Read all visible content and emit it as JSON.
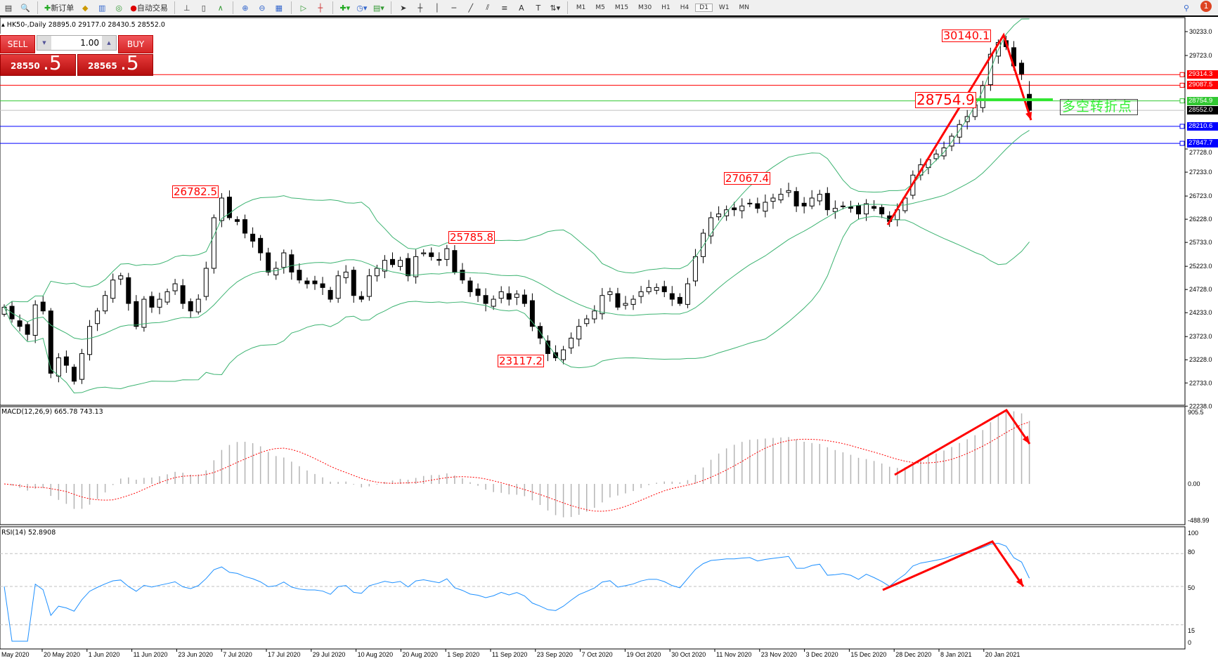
{
  "toolbar": {
    "new_order": "新订单",
    "auto_trading": "自动交易",
    "timeframes": [
      "M1",
      "M5",
      "M15",
      "M30",
      "H1",
      "H4",
      "D1",
      "W1",
      "MN"
    ],
    "notifications": "1"
  },
  "chart": {
    "title": "HK50-,Daily  28895.0 29177.0 28430.5 28552.0",
    "symbol": "HK50-",
    "period": "Daily"
  },
  "trade_panel": {
    "sell": "SELL",
    "buy": "BUY",
    "volume": "1.00",
    "sell_big": "28550",
    "sell_small": ".5",
    "buy_big": "28565",
    "buy_small": ".5"
  },
  "price_axis": [
    "30233.0",
    "29723.0",
    "27728.0",
    "27233.0",
    "26723.0",
    "26228.0",
    "25733.0",
    "25223.0",
    "24728.0",
    "24233.0",
    "23723.0",
    "23228.0",
    "22733.0",
    "22238.0"
  ],
  "levels": [
    {
      "price": "29314.3",
      "color": "#ff0000"
    },
    {
      "price": "29087.5",
      "color": "#ff0000"
    },
    {
      "price": "28754.9",
      "color": "#32c832"
    },
    {
      "price": "28552.0",
      "color": "#000000"
    },
    {
      "price": "28210.6",
      "color": "#0000ff"
    },
    {
      "price": "27847.7",
      "color": "#0000ff"
    }
  ],
  "price_labels": {
    "p1": "26782.5",
    "p2": "25785.8",
    "p3": "23117.2",
    "p4": "27067.4",
    "p5": "30140.1",
    "p6": "28754.9"
  },
  "annotation": "多空转折点",
  "macd": {
    "label": "MACD(12,26,9) 665.78 743.13",
    "axis": [
      "905.5",
      "0.00",
      "-488.99"
    ]
  },
  "rsi": {
    "label": "RSI(14) 52.8908",
    "axis": [
      "100",
      "80",
      "50",
      "15",
      "0"
    ]
  },
  "dates": [
    "May 2020",
    "20 May 2020",
    "1 Jun 2020",
    "11 Jun 2020",
    "23 Jun 2020",
    "7 Jul 2020",
    "17 Jul 2020",
    "29 Jul 2020",
    "10 Aug 2020",
    "20 Aug 2020",
    "1 Sep 2020",
    "11 Sep 2020",
    "23 Sep 2020",
    "7 Oct 2020",
    "19 Oct 2020",
    "30 Oct 2020",
    "11 Nov 2020",
    "23 Nov 2020",
    "3 Dec 2020",
    "15 Dec 2020",
    "28 Dec 2020",
    "8 Jan 2021",
    "20 Jan 2021"
  ],
  "colors": {
    "bands": "#3cb371",
    "signal": "#ff0000",
    "histogram": "#b4b4b4",
    "rsi": "#1e90ff",
    "arrows": "#ff0000"
  },
  "chart_data": {
    "type": "candlestick",
    "closes": [
      24350,
      24100,
      23940,
      23770,
      24400,
      24270,
      22940,
      23270,
      23110,
      22770,
      23360,
      23940,
      24270,
      24600,
      24930,
      25020,
      24430,
      23940,
      24520,
      24350,
      24520,
      24680,
      24850,
      24430,
      24270,
      24520,
      25180,
      26260,
      26680,
      26260,
      26180,
      25930,
      25760,
      25510,
      25100,
      25180,
      25510,
      25100,
      24930,
      24850,
      24850,
      24770,
      24520,
      25020,
      25100,
      24600,
      24520,
      25020,
      25180,
      25350,
      25260,
      25350,
      25020,
      25430,
      25510,
      25430,
      25350,
      25600,
      25100,
      24930,
      24680,
      24600,
      24430,
      24520,
      24680,
      24520,
      24630,
      24430,
      23940,
      23690,
      23360,
      23270,
      23440,
      23690,
      23940,
      24100,
      24270,
      24600,
      24680,
      24350,
      24430,
      24520,
      24680,
      24770,
      24770,
      24680,
      24520,
      24430,
      24850,
      25430,
      25930,
      26260,
      26340,
      26430,
      26430,
      26510,
      26560,
      26460,
      26590,
      26680,
      26760,
      26840,
      26510,
      26510,
      26680,
      26760,
      26430,
      26460,
      26510,
      26460,
      26340,
      26560,
      26460,
      26340,
      26180,
      26430,
      26680,
      27170,
      27390,
      27500,
      27620,
      27750,
      28000,
      28250,
      28420,
      28670,
      29080,
      29750,
      30000,
      29910,
      29500,
      29330,
      28552
    ],
    "last_bar": {
      "open": 28895.0,
      "high": 29177.0,
      "low": 28430.5,
      "close": 28552.0
    },
    "indicators": [
      "Bollinger Bands(20,2)",
      "MACD(12,26,9)",
      "RSI(14)"
    ]
  }
}
